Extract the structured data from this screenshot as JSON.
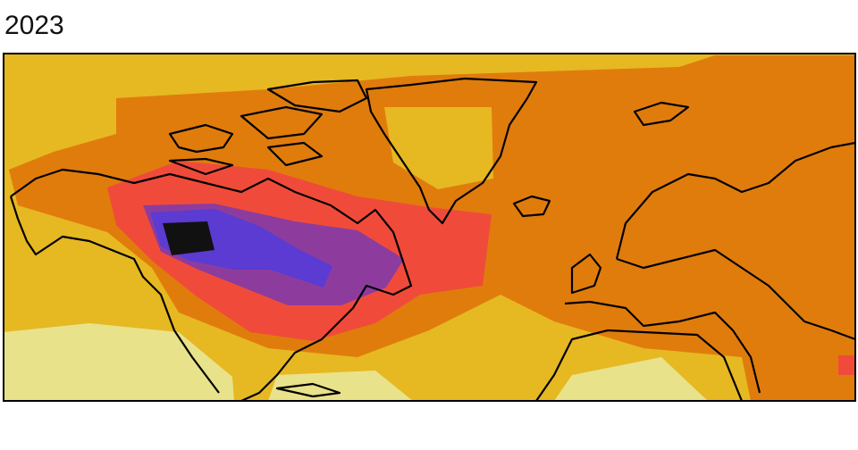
{
  "title": "2023"
}
